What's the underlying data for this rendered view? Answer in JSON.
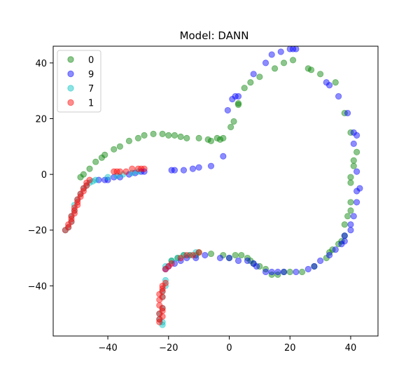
{
  "chart_data": {
    "type": "scatter",
    "title": "Model: DANN",
    "xlabel": "",
    "ylabel": "",
    "xlim": [
      -58,
      49
    ],
    "ylim": [
      -58,
      46
    ],
    "xticks": [
      -40,
      -20,
      0,
      20,
      40
    ],
    "yticks": [
      -40,
      -20,
      0,
      20,
      40
    ],
    "xtick_labels": [
      "−40",
      "−20",
      "0",
      "20",
      "40"
    ],
    "ytick_labels": [
      "−40",
      "−20",
      "0",
      "20",
      "40"
    ],
    "grid": false,
    "legend": "top-left",
    "series": [
      {
        "name": "0",
        "color": "#008000",
        "alpha": 0.45,
        "points": [
          [
            -49,
            -1
          ],
          [
            -48,
            0
          ],
          [
            -46,
            2
          ],
          [
            -44,
            4.5
          ],
          [
            -42,
            6
          ],
          [
            -41,
            7
          ],
          [
            -38,
            9
          ],
          [
            -36,
            10
          ],
          [
            -33,
            12
          ],
          [
            -30,
            13
          ],
          [
            -28,
            14
          ],
          [
            -25,
            14.5
          ],
          [
            -22,
            14.5
          ],
          [
            -20,
            14
          ],
          [
            -18,
            14
          ],
          [
            -16,
            13.5
          ],
          [
            -14,
            13
          ],
          [
            -10,
            13
          ],
          [
            -7,
            12.5
          ],
          [
            -4,
            13
          ],
          [
            -2,
            13
          ],
          [
            -6,
            12
          ],
          [
            -3,
            12.5
          ],
          [
            0.5,
            17
          ],
          [
            1.5,
            19
          ],
          [
            3,
            25
          ],
          [
            3,
            25.5
          ],
          [
            5,
            31
          ],
          [
            7,
            33
          ],
          [
            10,
            35
          ],
          [
            15,
            38
          ],
          [
            18,
            40
          ],
          [
            21,
            41
          ],
          [
            26,
            38
          ],
          [
            27,
            37.5
          ],
          [
            30,
            36
          ],
          [
            35,
            33
          ],
          [
            38,
            22
          ],
          [
            40,
            15
          ],
          [
            41,
            5
          ],
          [
            41,
            3
          ],
          [
            42,
            8
          ],
          [
            40,
            -1
          ],
          [
            40,
            -3
          ],
          [
            40,
            -10
          ],
          [
            40,
            -13
          ],
          [
            39,
            -15
          ],
          [
            38,
            -18
          ],
          [
            38,
            -22
          ],
          [
            37,
            -24
          ],
          [
            36,
            -25
          ],
          [
            34,
            -27
          ],
          [
            33,
            -28
          ],
          [
            32,
            -30
          ],
          [
            28,
            -33
          ],
          [
            24,
            -35
          ],
          [
            20,
            -35
          ],
          [
            18,
            -35
          ],
          [
            16,
            -36
          ],
          [
            14,
            -36
          ],
          [
            12,
            -34
          ],
          [
            10,
            -33
          ],
          [
            8,
            -32
          ],
          [
            7,
            -31
          ],
          [
            6,
            -30
          ],
          [
            4,
            -29
          ],
          [
            2,
            -29
          ],
          [
            0,
            -30
          ],
          [
            -2,
            -29
          ],
          [
            -6,
            -28.5
          ],
          [
            -10,
            -28
          ],
          [
            -11,
            -29
          ],
          [
            -13,
            -29
          ],
          [
            -15,
            -29
          ],
          [
            -17,
            -30
          ],
          [
            -19,
            -31
          ]
        ]
      },
      {
        "name": "9",
        "color": "#0000ff",
        "alpha": 0.45,
        "points": [
          [
            -43,
            -2
          ],
          [
            -41,
            -2
          ],
          [
            -40,
            -2
          ],
          [
            -38,
            -1
          ],
          [
            -36,
            -1
          ],
          [
            -33,
            0
          ],
          [
            -31,
            0.5
          ],
          [
            -29,
            1
          ],
          [
            -28,
            1
          ],
          [
            -19,
            1.5
          ],
          [
            -18,
            1.5
          ],
          [
            -15,
            1.5
          ],
          [
            -12,
            2
          ],
          [
            -10,
            2.5
          ],
          [
            -6,
            3
          ],
          [
            -2,
            6.5
          ],
          [
            -0.5,
            23
          ],
          [
            1,
            27
          ],
          [
            2,
            28
          ],
          [
            3,
            28
          ],
          [
            8,
            36
          ],
          [
            12,
            40
          ],
          [
            14,
            43
          ],
          [
            17,
            44
          ],
          [
            20,
            45
          ],
          [
            21,
            45
          ],
          [
            22,
            45
          ],
          [
            32,
            33
          ],
          [
            33,
            32
          ],
          [
            36,
            28
          ],
          [
            39,
            22
          ],
          [
            41,
            15
          ],
          [
            42,
            14
          ],
          [
            41,
            11
          ],
          [
            42,
            1
          ],
          [
            42,
            -6
          ],
          [
            43,
            -5
          ],
          [
            42,
            -10
          ],
          [
            41,
            -15
          ],
          [
            40,
            -18
          ],
          [
            40,
            -20
          ],
          [
            38,
            -22
          ],
          [
            38,
            -24
          ],
          [
            37,
            -25
          ],
          [
            35,
            -27
          ],
          [
            33,
            -29
          ],
          [
            30,
            -31
          ],
          [
            28,
            -33
          ],
          [
            26,
            -34
          ],
          [
            22,
            -35
          ],
          [
            18,
            -35
          ],
          [
            16,
            -35
          ],
          [
            14,
            -35
          ],
          [
            12,
            -35
          ],
          [
            9,
            -33
          ],
          [
            8,
            -32
          ],
          [
            6,
            -31
          ],
          [
            3,
            -31
          ],
          [
            0,
            -30
          ],
          [
            -3,
            -30
          ],
          [
            -8,
            -29
          ],
          [
            -11,
            -30
          ],
          [
            -14,
            -30
          ],
          [
            -16,
            -31
          ],
          [
            -18,
            -32
          ],
          [
            -20,
            -33
          ],
          [
            -21,
            -34
          ]
        ]
      },
      {
        "name": "7",
        "color": "#00c0c0",
        "alpha": 0.45,
        "points": [
          [
            -54,
            -20
          ],
          [
            -53,
            -19
          ],
          [
            -52,
            -17
          ],
          [
            -52,
            -15
          ],
          [
            -51,
            -13
          ],
          [
            -51,
            -11
          ],
          [
            -50,
            -9
          ],
          [
            -49,
            -7
          ],
          [
            -48,
            -5
          ],
          [
            -47,
            -4
          ],
          [
            -46,
            -3
          ],
          [
            -45,
            -2.5
          ],
          [
            -44,
            -2
          ],
          [
            -40,
            -1
          ],
          [
            -37,
            -0.5
          ],
          [
            -35,
            0
          ],
          [
            -32,
            0.5
          ],
          [
            -30,
            1
          ],
          [
            -23,
            -50
          ],
          [
            -22,
            -48
          ],
          [
            -22,
            -44
          ],
          [
            -22,
            -42
          ],
          [
            -21,
            -40
          ],
          [
            -21,
            -38
          ],
          [
            -22,
            -53
          ],
          [
            -22,
            -54
          ],
          [
            -23,
            -52
          ],
          [
            -21,
            -33
          ],
          [
            -19,
            -31
          ],
          [
            -17,
            -30
          ],
          [
            -15,
            -29
          ],
          [
            -13,
            -29
          ],
          [
            -11,
            -28
          ]
        ]
      },
      {
        "name": "1",
        "color": "#ff0000",
        "alpha": 0.45,
        "points": [
          [
            -54,
            -20
          ],
          [
            -53,
            -19
          ],
          [
            -53,
            -18
          ],
          [
            -52,
            -17
          ],
          [
            -52,
            -16
          ],
          [
            -52,
            -15
          ],
          [
            -51,
            -14
          ],
          [
            -51,
            -13
          ],
          [
            -51,
            -12
          ],
          [
            -50,
            -11
          ],
          [
            -50,
            -10
          ],
          [
            -50,
            -9
          ],
          [
            -49,
            -8
          ],
          [
            -49,
            -7
          ],
          [
            -48,
            -6
          ],
          [
            -48,
            -5
          ],
          [
            -47,
            -4
          ],
          [
            -47,
            -3
          ],
          [
            -46,
            -2
          ],
          [
            -38,
            1
          ],
          [
            -37,
            1
          ],
          [
            -36,
            1
          ],
          [
            -34,
            1
          ],
          [
            -32,
            2
          ],
          [
            -30,
            2
          ],
          [
            -29,
            2
          ],
          [
            -28,
            2
          ],
          [
            -23,
            -53
          ],
          [
            -23,
            -52
          ],
          [
            -22,
            -51
          ],
          [
            -23,
            -50
          ],
          [
            -22,
            -49
          ],
          [
            -22,
            -48
          ],
          [
            -23,
            -47
          ],
          [
            -23,
            -45
          ],
          [
            -22,
            -44
          ],
          [
            -23,
            -43
          ],
          [
            -22,
            -42
          ],
          [
            -22,
            -41
          ],
          [
            -22,
            -40
          ],
          [
            -21,
            -39
          ],
          [
            -21,
            -34
          ],
          [
            -20,
            -33
          ],
          [
            -19,
            -32
          ],
          [
            -16,
            -30
          ],
          [
            -14,
            -29
          ],
          [
            -12,
            -29
          ],
          [
            -10,
            -28
          ]
        ]
      }
    ]
  }
}
